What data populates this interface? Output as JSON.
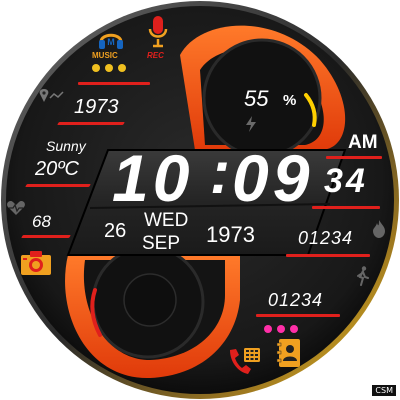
{
  "complications": {
    "music_label": "MUSIC",
    "rec_label": "REC",
    "dots_top_color": "#f0c020",
    "dots_bottom_color": "#ff2fa8"
  },
  "left": {
    "year": "1973",
    "weather_desc": "Sunny",
    "temperature": "20ºC",
    "heart_rate": "68"
  },
  "battery": {
    "percent_text": "55",
    "percent_sign": "%",
    "level": 0.55
  },
  "time": {
    "hours": "10",
    "separator": ":",
    "minutes": "09",
    "seconds": "34",
    "ampm": "AM"
  },
  "date": {
    "day": "26",
    "weekday": "WED",
    "month": "SEP",
    "year": "1973"
  },
  "right": {
    "calories": "01234",
    "steps": "01234"
  },
  "colors": {
    "accent_red": "#e0201c",
    "accent_orange": "#ff5a14",
    "bezel": "#1e1e1e"
  },
  "watermark": "CSM"
}
